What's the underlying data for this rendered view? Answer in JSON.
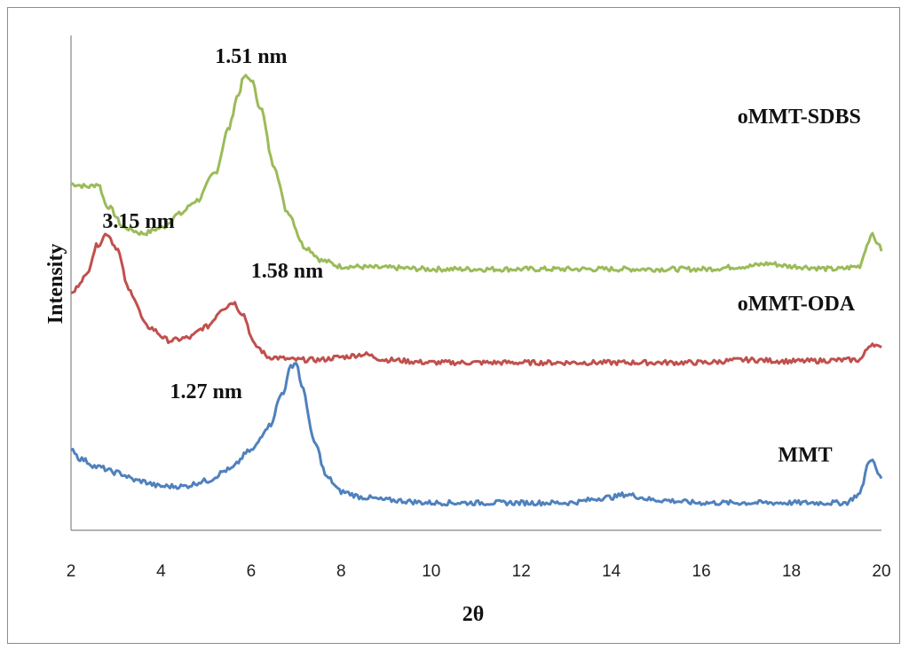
{
  "chart_data": {
    "type": "line",
    "xlabel": "2θ",
    "ylabel": "Intensity",
    "xlim": [
      2,
      20
    ],
    "x_ticks": [
      "2",
      "4",
      "6",
      "8",
      "10",
      "12",
      "14",
      "16",
      "18",
      "20"
    ],
    "y_ticks": "none",
    "grid": false,
    "series": [
      {
        "name": "oMMT-SDBS",
        "color": "#9bbb59",
        "points": [
          [
            2,
            12.6
          ],
          [
            2.4,
            12.5
          ],
          [
            2.6,
            12.6
          ],
          [
            2.8,
            11.8
          ],
          [
            3.2,
            11.0
          ],
          [
            3.6,
            10.8
          ],
          [
            4.0,
            11.0
          ],
          [
            4.4,
            11.5
          ],
          [
            4.8,
            12.0
          ],
          [
            5.2,
            13.0
          ],
          [
            5.5,
            14.6
          ],
          [
            5.7,
            15.8
          ],
          [
            5.85,
            16.5
          ],
          [
            6.0,
            16.4
          ],
          [
            6.2,
            15.4
          ],
          [
            6.5,
            13.3
          ],
          [
            6.8,
            11.6
          ],
          [
            7.2,
            10.3
          ],
          [
            7.6,
            9.8
          ],
          [
            8.0,
            9.6
          ],
          [
            9,
            9.55
          ],
          [
            10,
            9.5
          ],
          [
            12,
            9.5
          ],
          [
            14,
            9.5
          ],
          [
            16,
            9.5
          ],
          [
            17,
            9.6
          ],
          [
            17.5,
            9.7
          ],
          [
            18,
            9.6
          ],
          [
            19,
            9.5
          ],
          [
            19.5,
            9.6
          ],
          [
            19.7,
            10.4
          ],
          [
            19.75,
            10.8
          ],
          [
            19.9,
            10.5
          ],
          [
            20,
            10.2
          ]
        ]
      },
      {
        "name": "oMMT-ODA",
        "color": "#c0504d",
        "points": [
          [
            2,
            8.6
          ],
          [
            2.3,
            9.2
          ],
          [
            2.6,
            10.4
          ],
          [
            2.8,
            10.8
          ],
          [
            3.0,
            10.3
          ],
          [
            3.3,
            8.7
          ],
          [
            3.7,
            7.4
          ],
          [
            4.2,
            6.9
          ],
          [
            4.6,
            7.0
          ],
          [
            5.0,
            7.4
          ],
          [
            5.4,
            8.1
          ],
          [
            5.6,
            8.3
          ],
          [
            5.8,
            7.9
          ],
          [
            6.1,
            6.7
          ],
          [
            6.4,
            6.3
          ],
          [
            7.0,
            6.2
          ],
          [
            7.5,
            6.2
          ],
          [
            8.0,
            6.3
          ],
          [
            8.5,
            6.4
          ],
          [
            9.0,
            6.2
          ],
          [
            10,
            6.1
          ],
          [
            12,
            6.1
          ],
          [
            14,
            6.1
          ],
          [
            16,
            6.1
          ],
          [
            17,
            6.2
          ],
          [
            18,
            6.15
          ],
          [
            19.5,
            6.2
          ],
          [
            19.8,
            6.8
          ],
          [
            20,
            6.6
          ]
        ]
      },
      {
        "name": "MMT",
        "color": "#4f81bd",
        "points": [
          [
            2,
            3.0
          ],
          [
            2.2,
            2.6
          ],
          [
            2.6,
            2.3
          ],
          [
            3.0,
            2.1
          ],
          [
            3.5,
            1.8
          ],
          [
            4.0,
            1.6
          ],
          [
            4.5,
            1.6
          ],
          [
            5.0,
            1.8
          ],
          [
            5.5,
            2.2
          ],
          [
            6.0,
            2.9
          ],
          [
            6.4,
            3.8
          ],
          [
            6.7,
            5.0
          ],
          [
            6.9,
            6.0
          ],
          [
            7.0,
            6.1
          ],
          [
            7.15,
            5.1
          ],
          [
            7.4,
            3.2
          ],
          [
            7.7,
            1.9
          ],
          [
            8.0,
            1.4
          ],
          [
            8.5,
            1.2
          ],
          [
            9.0,
            1.1
          ],
          [
            10,
            1.0
          ],
          [
            11,
            1.0
          ],
          [
            12,
            1.0
          ],
          [
            13,
            1.0
          ],
          [
            14,
            1.2
          ],
          [
            14.3,
            1.3
          ],
          [
            15,
            1.1
          ],
          [
            16,
            1.0
          ],
          [
            17,
            1.0
          ],
          [
            18,
            1.0
          ],
          [
            19.2,
            1.0
          ],
          [
            19.5,
            1.3
          ],
          [
            19.75,
            2.6
          ],
          [
            20,
            1.9
          ]
        ]
      }
    ],
    "annotations": [
      {
        "text": "1.51 nm",
        "x": 6.0,
        "y": 17.0
      },
      {
        "text": "3.15 nm",
        "x": 3.5,
        "y": 11.0
      },
      {
        "text": "1.58 nm",
        "x": 6.8,
        "y": 9.2
      },
      {
        "text": "1.27 nm",
        "x": 5.0,
        "y": 4.8
      }
    ],
    "series_labels": [
      {
        "text": "oMMT-SDBS",
        "x": 16.8,
        "y": 14.8
      },
      {
        "text": "oMMT-ODA",
        "x": 16.8,
        "y": 8.0
      },
      {
        "text": "MMT",
        "x": 17.7,
        "y": 2.5
      }
    ]
  }
}
